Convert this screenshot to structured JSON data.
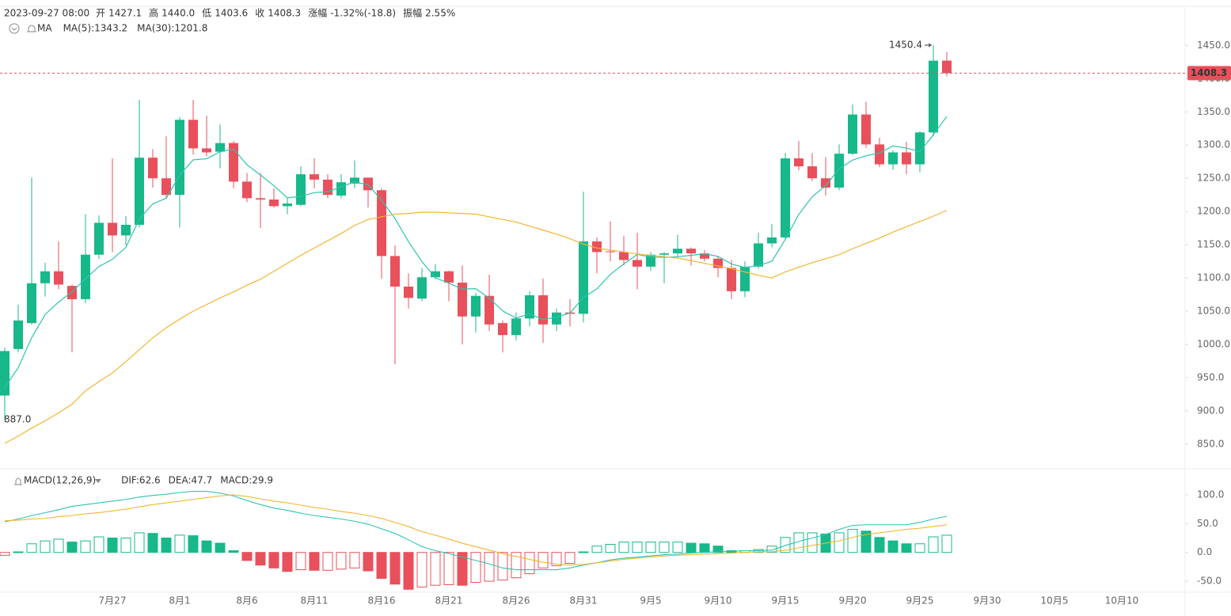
{
  "header": {
    "time": "2023-09-27 08:00",
    "fields": [
      {
        "label": "开",
        "value": "1427.1"
      },
      {
        "label": "高",
        "value": "1440.0"
      },
      {
        "label": "低",
        "value": "1403.6"
      },
      {
        "label": "收",
        "value": "1408.3"
      },
      {
        "label": "涨幅",
        "value": "-1.32%(-18.8)"
      },
      {
        "label": "振幅",
        "value": "2.55%"
      }
    ]
  },
  "chart_data": [
    {
      "type": "candlestick",
      "legend_title": "MA",
      "up_color": "#17b88a",
      "down_color": "#e8505b",
      "categories": [
        null,
        null,
        null,
        null,
        null,
        null,
        null,
        null,
        "7月27",
        null,
        null,
        null,
        null,
        "8月1",
        null,
        null,
        null,
        null,
        "8月6",
        null,
        null,
        null,
        null,
        "8月11",
        null,
        null,
        null,
        null,
        "8月16",
        null,
        null,
        null,
        null,
        "8月21",
        null,
        null,
        null,
        null,
        "8月26",
        null,
        null,
        null,
        null,
        "8月31",
        null,
        null,
        null,
        null,
        "9月5",
        null,
        null,
        null,
        null,
        "9月10",
        null,
        null,
        null,
        null,
        "9月15",
        null,
        null,
        null,
        null,
        "9月20",
        null,
        null,
        null,
        null,
        "9月25",
        null,
        null
      ],
      "future_xticks": [
        "9月30",
        "10月5",
        "10月10"
      ],
      "open": [
        923,
        993,
        1032,
        1092,
        1110,
        1088,
        1068,
        1135,
        1183,
        1164,
        1180,
        1281,
        1250,
        1225,
        1338,
        1295,
        1290,
        1303,
        1245,
        1220,
        1218,
        1208,
        1210,
        1256,
        1248,
        1224,
        1242,
        1251,
        1232,
        1133,
        1087,
        1069,
        1101,
        1110,
        1093,
        1042,
        1073,
        1032,
        1014,
        1039,
        1074,
        1030,
        1048,
        1046,
        1155,
        1140,
        1139,
        1127,
        1117,
        1135,
        1137,
        1144,
        1137,
        1129,
        1115,
        1080,
        1117,
        1152,
        1161,
        1280,
        1268,
        1250,
        1236,
        1287,
        1346,
        1301,
        1271,
        1289,
        1271,
        1319,
        1427.1
      ],
      "high": [
        995,
        1060,
        1251,
        1123,
        1155,
        1090,
        1196,
        1194,
        1280,
        1193,
        1368,
        1294,
        1313,
        1342,
        1368,
        1344,
        1331,
        1306,
        1258,
        1258,
        1235,
        1220,
        1268,
        1280,
        1256,
        1256,
        1277,
        1251,
        1235,
        1149,
        1107,
        1115,
        1121,
        1111,
        1119,
        1077,
        1105,
        1036,
        1048,
        1080,
        1099,
        1054,
        1068,
        1230,
        1161,
        1185,
        1163,
        1168,
        1139,
        1139,
        1165,
        1146,
        1142,
        1133,
        1127,
        1125,
        1168,
        1181,
        1288,
        1306,
        1288,
        1282,
        1301,
        1361,
        1365,
        1311,
        1292,
        1305,
        1321,
        1450.4,
        1440.0
      ],
      "low": [
        887.0,
        988,
        1030,
        1072,
        1083,
        988,
        1062,
        1129,
        1139,
        1149,
        1176,
        1236,
        1220,
        1176,
        1286,
        1283,
        1265,
        1235,
        1214,
        1175,
        1206,
        1196,
        1208,
        1235,
        1220,
        1220,
        1235,
        1206,
        1099,
        970,
        1054,
        1065,
        1098,
        1065,
        1000,
        1018,
        1020,
        988,
        1006,
        1027,
        1002,
        1020,
        1027,
        1033,
        1107,
        1125,
        1119,
        1083,
        1111,
        1092,
        1131,
        1119,
        1125,
        1101,
        1068,
        1071,
        1114,
        1146,
        1157,
        1262,
        1246,
        1224,
        1232,
        1285,
        1296,
        1267,
        1263,
        1256,
        1259,
        1313,
        1403.6
      ],
      "close": [
        990,
        1036,
        1092,
        1110,
        1090,
        1068,
        1135,
        1183,
        1164,
        1180,
        1281,
        1250,
        1225,
        1338,
        1295,
        1289,
        1303,
        1245,
        1220,
        1218,
        1208,
        1212,
        1256,
        1248,
        1225,
        1244,
        1251,
        1232,
        1133,
        1087,
        1070,
        1101,
        1110,
        1093,
        1042,
        1073,
        1030,
        1014,
        1039,
        1074,
        1030,
        1048,
        1046,
        1155,
        1139,
        1139,
        1127,
        1117,
        1135,
        1137,
        1144,
        1137,
        1129,
        1115,
        1080,
        1117,
        1152,
        1161,
        1280,
        1268,
        1250,
        1236,
        1287,
        1346,
        1301,
        1271,
        1289,
        1271,
        1319,
        1427,
        1408.3
      ],
      "series": [
        {
          "legend": "MA(5):1343.2",
          "color": "#2ec4b0",
          "values": [
            935,
            965,
            1010,
            1045,
            1063.6,
            1079.2,
            1099,
            1117.2,
            1128,
            1146,
            1188.6,
            1211.6,
            1220,
            1254.8,
            1277.8,
            1279.4,
            1290,
            1294,
            1270.4,
            1255,
            1238.8,
            1220.6,
            1222.8,
            1228.4,
            1229.8,
            1237,
            1244.8,
            1240,
            1217,
            1189.4,
            1154.6,
            1124.6,
            1100.2,
            1092.2,
            1083.2,
            1083.8,
            1069.6,
            1050.4,
            1039.6,
            1046,
            1037.4,
            1041,
            1047.4,
            1070.6,
            1083.6,
            1105.4,
            1121.2,
            1135.4,
            1131.4,
            1131,
            1132,
            1134,
            1136.4,
            1132.4,
            1121,
            1115.6,
            1118.6,
            1125,
            1158,
            1195.6,
            1222.2,
            1239,
            1264.2,
            1277.4,
            1284,
            1288.2,
            1298.8,
            1295.6,
            1290.2,
            1315.4,
            1343.2
          ]
        },
        {
          "legend": "MA(30):1201.8",
          "color": "#f2b632",
          "values": [
            851,
            862,
            874,
            885,
            897,
            910,
            930,
            944,
            957,
            974,
            992,
            1010,
            1025,
            1038,
            1050,
            1060,
            1070,
            1079,
            1089,
            1098,
            1110,
            1122,
            1134,
            1145,
            1156,
            1167,
            1179,
            1188,
            1192,
            1196,
            1197,
            1199,
            1199,
            1198,
            1197,
            1196,
            1192,
            1188,
            1184,
            1178,
            1172,
            1166,
            1159,
            1151,
            1145,
            1142,
            1139,
            1136,
            1134,
            1132,
            1130,
            1126,
            1122,
            1118,
            1114,
            1109,
            1104,
            1100,
            1109,
            1116,
            1123,
            1129,
            1135,
            1144,
            1152,
            1160,
            1169,
            1177,
            1185,
            1193,
            1201.8
          ]
        }
      ],
      "max_label": "1450.4",
      "min_label": "887.0",
      "last_label": "1408.3",
      "last_color": "#e8505b",
      "ylim": [
        820,
        1510
      ],
      "yticks": [
        {
          "value": 850,
          "label": "850.0"
        },
        {
          "value": 900,
          "label": "900.0"
        },
        {
          "value": 950,
          "label": "950.0"
        },
        {
          "value": 1000,
          "label": "1000.0"
        },
        {
          "value": 1050,
          "label": "1050.0"
        },
        {
          "value": 1100,
          "label": "1100.0"
        },
        {
          "value": 1150,
          "label": "1150.0"
        },
        {
          "value": 1200,
          "label": "1200.0"
        },
        {
          "value": 1250,
          "label": "1250.0"
        },
        {
          "value": 1300,
          "label": "1300.0"
        },
        {
          "value": 1350,
          "label": "1350.0"
        },
        {
          "value": 1400,
          "label": "1400.0"
        },
        {
          "value": 1450,
          "label": "1450.0"
        }
      ]
    },
    {
      "type": "macd",
      "legend_title": "MACD(12,26,9)",
      "up_color": "#17b88a",
      "down_color": "#e8505b",
      "histogram": {
        "legend": "MACD:29.9",
        "values": [
          -5,
          1,
          15,
          20,
          23,
          18,
          20,
          27,
          25,
          25,
          34,
          33,
          25,
          30,
          29,
          20,
          16,
          3,
          -14,
          -22,
          -27,
          -33,
          -30,
          -31,
          -31,
          -29,
          -27,
          -32,
          -45,
          -55,
          -64,
          -60,
          -57,
          -56,
          -57,
          -52,
          -50,
          -48,
          -44,
          -37,
          -27,
          -23,
          -19,
          1,
          11,
          14,
          18,
          18,
          18,
          18,
          18,
          16,
          15,
          11,
          3,
          3,
          5,
          11,
          26,
          34,
          34,
          32,
          34,
          40,
          37,
          26,
          20,
          15,
          15,
          27,
          29.9
        ]
      },
      "series": [
        {
          "legend": "DIF:62.6",
          "color": "#2ec4b0",
          "values": [
            53,
            58,
            64,
            69,
            74,
            80,
            83,
            86,
            89,
            92,
            96,
            99,
            101,
            104,
            106,
            106,
            103,
            98,
            90,
            83,
            77,
            73,
            68,
            64,
            61,
            58,
            54,
            49,
            41,
            33,
            22,
            10,
            3,
            -2,
            -8,
            -14,
            -20,
            -27,
            -30,
            -30,
            -30,
            -30,
            -27,
            -22,
            -18,
            -13,
            -10,
            -8,
            -6,
            -4,
            -3,
            -1,
            0,
            1,
            2,
            3,
            3,
            4,
            12,
            19,
            25,
            31,
            40,
            47,
            48,
            48,
            48,
            48,
            52,
            58,
            62.6
          ]
        },
        {
          "legend": "DEA:47.7",
          "color": "#f2b632",
          "values": [
            55,
            56,
            58,
            59,
            62,
            64,
            67,
            69,
            72,
            75,
            79,
            83,
            86,
            89,
            92,
            95,
            98,
            100,
            97,
            93,
            89,
            86,
            82,
            78,
            75,
            71,
            68,
            64,
            59,
            52,
            45,
            36,
            30,
            23,
            16,
            10,
            4,
            -2,
            -7,
            -12,
            -17,
            -20,
            -22,
            -21,
            -18,
            -15,
            -12,
            -10,
            -8,
            -6,
            -5,
            -4,
            -3,
            -2,
            -1,
            0,
            1,
            1,
            4,
            8,
            12,
            16,
            20,
            26,
            31,
            34,
            37,
            40,
            42,
            45,
            47.7
          ]
        }
      ],
      "ylim": [
        -65,
        115
      ],
      "yticks": [
        {
          "value": -50,
          "label": "-50.0"
        },
        {
          "value": 0,
          "label": "0.0"
        },
        {
          "value": 50,
          "label": "50.0"
        },
        {
          "value": 100,
          "label": "100.0"
        }
      ]
    }
  ]
}
